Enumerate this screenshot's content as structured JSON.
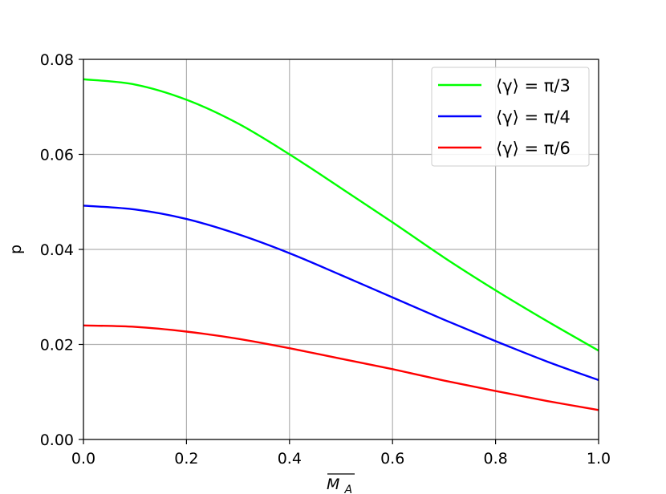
{
  "chart_data": {
    "type": "line",
    "title": "",
    "xlabel": "M_A",
    "xlabel_display": "M",
    "xlabel_subscript": "A",
    "ylabel": "p",
    "xlim": [
      0.0,
      1.0
    ],
    "ylim": [
      0.0,
      0.08
    ],
    "xticks": [
      0.0,
      0.2,
      0.4,
      0.6,
      0.8,
      1.0
    ],
    "xtick_labels": [
      "0.0",
      "0.2",
      "0.4",
      "0.6",
      "0.8",
      "1.0"
    ],
    "yticks": [
      0.0,
      0.02,
      0.04,
      0.06,
      0.08
    ],
    "ytick_labels": [
      "0.00",
      "0.02",
      "0.04",
      "0.06",
      "0.08"
    ],
    "grid": true,
    "legend_position": "top-right",
    "x": [
      0.0,
      0.1,
      0.2,
      0.3,
      0.4,
      0.5,
      0.6,
      0.7,
      0.8,
      0.9,
      1.0
    ],
    "series": [
      {
        "name": "⟨γ⟩ = π/3",
        "color": "#00ff00",
        "values": [
          0.0758,
          0.0747,
          0.0715,
          0.0665,
          0.06,
          0.0529,
          0.0457,
          0.0383,
          0.0314,
          0.0249,
          0.0187
        ]
      },
      {
        "name": "⟨γ⟩ = π/4",
        "color": "#0000ff",
        "values": [
          0.0492,
          0.0484,
          0.0464,
          0.0432,
          0.0392,
          0.0346,
          0.0299,
          0.0252,
          0.0207,
          0.0164,
          0.0125
        ]
      },
      {
        "name": "⟨γ⟩ = π/6",
        "color": "#ff0000",
        "values": [
          0.024,
          0.0237,
          0.0227,
          0.0212,
          0.0192,
          0.017,
          0.0148,
          0.0124,
          0.0102,
          0.0081,
          0.0062
        ]
      }
    ]
  }
}
